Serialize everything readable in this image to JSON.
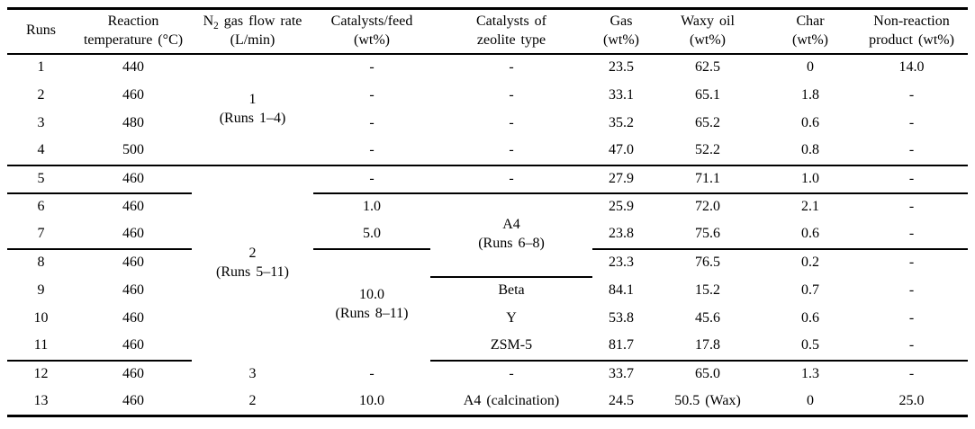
{
  "table": {
    "columns": [
      {
        "id": "runs",
        "line1": "Runs",
        "line2": ""
      },
      {
        "id": "temp",
        "line1": "Reaction",
        "line2": "temperature (°C)"
      },
      {
        "id": "n2",
        "line1_prefix": "N",
        "line1_sub": "2",
        "line1_rest": " gas flow rate",
        "line2": "(L/min)"
      },
      {
        "id": "catfeed",
        "line1": "Catalysts/feed",
        "line2": "(wt%)"
      },
      {
        "id": "zeolite",
        "line1": "Catalysts of",
        "line2": "zeolite type"
      },
      {
        "id": "gas",
        "line1": "Gas",
        "line2": "(wt%)"
      },
      {
        "id": "waxy",
        "line1": "Waxy oil",
        "line2": "(wt%)"
      },
      {
        "id": "char",
        "line1": "Char",
        "line2": "(wt%)"
      },
      {
        "id": "nonreaction",
        "line1": "Non-reaction",
        "line2": "product (wt%)"
      }
    ],
    "merged_cells": {
      "n2_runs_1_4": {
        "value": "1",
        "label": "(Runs 1–4)"
      },
      "n2_runs_5_11": {
        "value": "2",
        "label": "(Runs 5–11)"
      },
      "catfeed_runs_8_11": {
        "value": "10.0",
        "label": "(Runs 8–11)"
      },
      "zeolite_runs_6_8": {
        "value": "A4",
        "label": "(Runs 6–8)"
      }
    },
    "rows": [
      {
        "run": "1",
        "temp": "440",
        "catfeed": "-",
        "zeolite": "-",
        "gas": "23.5",
        "waxy": "62.5",
        "char": "0",
        "nonreaction": "14.0"
      },
      {
        "run": "2",
        "temp": "460",
        "catfeed": "-",
        "zeolite": "-",
        "gas": "33.1",
        "waxy": "65.1",
        "char": "1.8",
        "nonreaction": "-"
      },
      {
        "run": "3",
        "temp": "480",
        "catfeed": "-",
        "zeolite": "-",
        "gas": "35.2",
        "waxy": "65.2",
        "char": "0.6",
        "nonreaction": "-"
      },
      {
        "run": "4",
        "temp": "500",
        "catfeed": "-",
        "zeolite": "-",
        "gas": "47.0",
        "waxy": "52.2",
        "char": "0.8",
        "nonreaction": "-"
      },
      {
        "run": "5",
        "temp": "460",
        "catfeed": "-",
        "zeolite": "-",
        "gas": "27.9",
        "waxy": "71.1",
        "char": "1.0",
        "nonreaction": "-"
      },
      {
        "run": "6",
        "temp": "460",
        "catfeed": "1.0",
        "gas": "25.9",
        "waxy": "72.0",
        "char": "2.1",
        "nonreaction": "-"
      },
      {
        "run": "7",
        "temp": "460",
        "catfeed": "5.0",
        "gas": "23.8",
        "waxy": "75.6",
        "char": "0.6",
        "nonreaction": "-"
      },
      {
        "run": "8",
        "temp": "460",
        "gas": "23.3",
        "waxy": "76.5",
        "char": "0.2",
        "nonreaction": "-"
      },
      {
        "run": "9",
        "temp": "460",
        "zeolite": "Beta",
        "gas": "84.1",
        "waxy": "15.2",
        "char": "0.7",
        "nonreaction": "-"
      },
      {
        "run": "10",
        "temp": "460",
        "zeolite": "Y",
        "gas": "53.8",
        "waxy": "45.6",
        "char": "0.6",
        "nonreaction": "-"
      },
      {
        "run": "11",
        "temp": "460",
        "zeolite": "ZSM-5",
        "gas": "81.7",
        "waxy": "17.8",
        "char": "0.5",
        "nonreaction": "-"
      },
      {
        "run": "12",
        "temp": "460",
        "n2": "3",
        "catfeed": "-",
        "zeolite": "-",
        "gas": "33.7",
        "waxy": "65.0",
        "char": "1.3",
        "nonreaction": "-"
      },
      {
        "run": "13",
        "temp": "460",
        "n2": "2",
        "catfeed": "10.0",
        "zeolite": "A4 (calcination)",
        "gas": "24.5",
        "waxy": "50.5 (Wax)",
        "char": "0",
        "nonreaction": "25.0"
      }
    ]
  }
}
